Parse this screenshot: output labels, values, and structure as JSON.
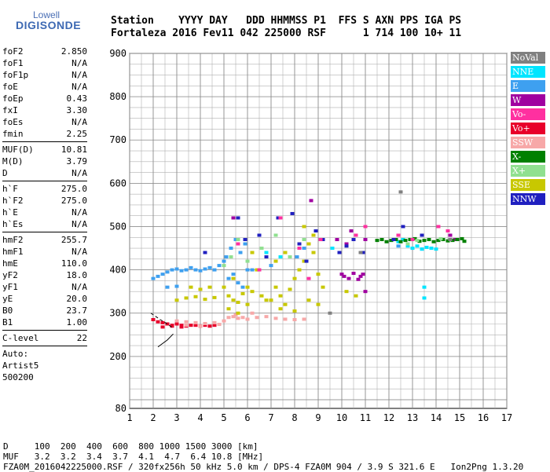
{
  "logo": {
    "line1": "Lowell",
    "line2": "DIGISONDE"
  },
  "header": {
    "row1": "Station    YYYY DAY   DDD HHMMSS P1  FFS S AXN PPS IGA PS",
    "row2": "Fortaleza 2016 Fev11 042 225000 RSF      1 714 100 10+ 11"
  },
  "params": [
    {
      "name": "foF2",
      "value": "2.850"
    },
    {
      "name": "foF1",
      "value": "N/A"
    },
    {
      "name": "foF1p",
      "value": "N/A"
    },
    {
      "name": "foE",
      "value": "N/A"
    },
    {
      "name": "foEp",
      "value": "0.43"
    },
    {
      "name": "fxI",
      "value": "3.30"
    },
    {
      "name": "foEs",
      "value": "N/A"
    },
    {
      "name": "fmin",
      "value": "2.25"
    },
    {
      "sep": true
    },
    {
      "name": "MUF(D)",
      "value": "10.81"
    },
    {
      "name": "M(D)",
      "value": "3.79"
    },
    {
      "name": "D",
      "value": "N/A"
    },
    {
      "sep": true
    },
    {
      "name": "h`F",
      "value": "275.0"
    },
    {
      "name": "h`F2",
      "value": "275.0"
    },
    {
      "name": "h`E",
      "value": "N/A"
    },
    {
      "name": "h`Es",
      "value": "N/A"
    },
    {
      "sep": true
    },
    {
      "name": "hmF2",
      "value": "255.7"
    },
    {
      "name": "hmF1",
      "value": "N/A"
    },
    {
      "name": "hmE",
      "value": "110.0"
    },
    {
      "name": "yF2",
      "value": "18.0"
    },
    {
      "name": "yF1",
      "value": "N/A"
    },
    {
      "name": "yE",
      "value": "20.0"
    },
    {
      "name": "B0",
      "value": "23.7"
    },
    {
      "name": "B1",
      "value": "1.00"
    },
    {
      "sep": true
    },
    {
      "name": "C-level",
      "value": "22"
    },
    {
      "sep": true
    },
    {
      "name": "Auto:",
      "value": ""
    },
    {
      "name": "Artist5",
      "value": ""
    },
    {
      "name": "500200",
      "value": ""
    }
  ],
  "legend": [
    {
      "label": "NoVal",
      "color": "#808080"
    },
    {
      "label": "NNE",
      "color": "#00e5ff"
    },
    {
      "label": "E",
      "color": "#3ea0f0"
    },
    {
      "label": "W",
      "color": "#a000a0"
    },
    {
      "label": "Vo-",
      "color": "#ff30a0"
    },
    {
      "label": "Vo+",
      "color": "#e8002a"
    },
    {
      "label": "SSW",
      "color": "#f7a8a8"
    },
    {
      "label": "X-",
      "color": "#008000"
    },
    {
      "label": "X+",
      "color": "#90e090"
    },
    {
      "label": "SSE",
      "color": "#c8c800"
    },
    {
      "label": "NNW",
      "color": "#2020c0"
    }
  ],
  "bottom": {
    "line1": "D     100  200  400  600  800 1000 1500 3000 [km]",
    "line2": "MUF   3.2  3.2  3.4  3.7  4.1  4.7  6.4 10.8 [MHz]",
    "line3": "FZA0M_2016042225000.RSF / 320fx256h 50 kHz 5.0 km / DPS-4 FZA0M 904 / 3.9 S 321.6 E   Ion2Png 1.3.20"
  },
  "chart_data": {
    "type": "scatter",
    "title": "",
    "xlabel": "",
    "ylabel": "",
    "xlim": [
      1,
      17
    ],
    "ylim": [
      80,
      900
    ],
    "x_ticks": [
      "1",
      "2",
      "3",
      "4",
      "5",
      "6",
      "7",
      "8",
      "9",
      "10",
      "11",
      "12",
      "13",
      "14",
      "15",
      "16",
      "17"
    ],
    "y_ticks": [
      "80",
      "200",
      "300",
      "400",
      "500",
      "600",
      "700",
      "800",
      "900"
    ],
    "grid": true,
    "trace": {
      "x": [
        1.9,
        2.3,
        2.6,
        2.85
      ],
      "y": [
        300,
        285,
        275,
        265
      ],
      "lower_x": [
        2.2,
        2.6,
        2.85
      ],
      "lower_y": [
        222,
        238,
        252
      ]
    },
    "series": [
      {
        "name": "Vo+",
        "color": "#e8002a",
        "x": [
          2.0,
          2.2,
          2.4,
          2.6,
          2.8,
          3.0,
          3.2,
          3.4,
          3.6,
          3.8,
          4.0,
          4.2,
          4.4,
          4.6,
          2.4,
          2.8,
          3.2
        ],
        "y": [
          285,
          280,
          278,
          275,
          272,
          275,
          272,
          270,
          272,
          272,
          270,
          272,
          270,
          272,
          268,
          270,
          268
        ]
      },
      {
        "name": "SSW",
        "color": "#f7a8a8",
        "x": [
          3.0,
          3.4,
          3.8,
          4.2,
          4.6,
          5.0,
          5.2,
          5.4,
          5.6,
          5.8,
          6.0,
          6.4,
          6.8,
          7.2,
          7.6,
          8.0,
          8.4,
          3.4,
          4.0,
          4.8,
          5.5,
          6.2
        ],
        "y": [
          282,
          280,
          278,
          276,
          278,
          282,
          290,
          292,
          288,
          290,
          286,
          290,
          292,
          288,
          286,
          285,
          286,
          272,
          270,
          274,
          296,
          300
        ]
      },
      {
        "name": "SSE",
        "color": "#c8c800",
        "x": [
          3.0,
          3.4,
          3.8,
          4.2,
          4.6,
          5.0,
          5.2,
          5.4,
          5.6,
          5.8,
          6.0,
          6.2,
          6.6,
          7.0,
          7.2,
          7.4,
          7.6,
          7.8,
          8.0,
          8.2,
          8.4,
          8.6,
          8.8,
          9.0,
          9.2,
          5.2,
          5.6,
          6.0,
          6.8,
          7.4,
          8.0,
          8.6,
          9.0,
          5.4,
          6.4,
          7.2,
          8.2,
          8.8,
          4.4,
          3.6,
          4.0,
          6.2,
          7.6,
          8.4,
          9.1,
          10.2,
          10.6
        ],
        "y": [
          330,
          335,
          338,
          332,
          336,
          360,
          340,
          330,
          325,
          345,
          360,
          350,
          340,
          330,
          360,
          340,
          320,
          355,
          380,
          400,
          420,
          460,
          440,
          390,
          360,
          310,
          300,
          320,
          330,
          310,
          305,
          330,
          320,
          380,
          400,
          420,
          460,
          480,
          360,
          360,
          355,
          440,
          440,
          500,
          470,
          350,
          340
        ]
      },
      {
        "name": "E",
        "color": "#3ea0f0",
        "x": [
          2.0,
          2.2,
          2.4,
          2.6,
          2.8,
          3.0,
          3.2,
          3.4,
          3.6,
          3.8,
          4.0,
          4.2,
          4.4,
          4.6,
          4.8,
          5.0,
          5.1,
          5.3,
          5.5,
          5.7,
          5.9,
          6.0,
          5.2,
          5.4,
          5.6,
          5.8,
          6.2,
          7.0,
          8.1,
          8.4,
          13.0,
          13.4,
          13.8,
          12.4,
          2.6,
          3.0
        ],
        "y": [
          380,
          385,
          390,
          395,
          400,
          402,
          398,
          400,
          405,
          400,
          398,
          402,
          405,
          400,
          410,
          420,
          430,
          450,
          470,
          440,
          460,
          400,
          380,
          390,
          370,
          360,
          400,
          410,
          430,
          450,
          450,
          448,
          450,
          455,
          360,
          362
        ]
      },
      {
        "name": "NNE",
        "color": "#00e5ff",
        "x": [
          12.4,
          12.6,
          12.8,
          13.0,
          13.2,
          13.4,
          13.6,
          13.8,
          14.0,
          13.5,
          13.5,
          6.8,
          7.4,
          9.6
        ],
        "y": [
          465,
          470,
          455,
          450,
          455,
          448,
          452,
          450,
          448,
          360,
          335,
          440,
          430,
          450
        ]
      },
      {
        "name": "W",
        "color": "#a000a0",
        "x": [
          10.0,
          10.1,
          10.3,
          10.5,
          10.7,
          10.8,
          10.9,
          11.0,
          11.0,
          10.2,
          10.6,
          5.4,
          8.7,
          9.8,
          10.4,
          14.6,
          14.8
        ],
        "y": [
          390,
          385,
          380,
          392,
          378,
          385,
          390,
          350,
          470,
          460,
          480,
          520,
          560,
          470,
          490,
          480,
          470
        ]
      },
      {
        "name": "X-",
        "color": "#008000",
        "x": [
          11.5,
          11.7,
          11.9,
          12.1,
          12.3,
          12.5,
          12.7,
          12.9,
          13.1,
          13.3,
          13.5,
          13.7,
          13.9,
          14.1,
          14.3,
          14.5,
          14.7,
          14.9,
          15.1,
          15.2
        ],
        "y": [
          468,
          470,
          465,
          468,
          470,
          465,
          468,
          470,
          472,
          466,
          468,
          470,
          465,
          468,
          470,
          467,
          468,
          470,
          472,
          466
        ]
      },
      {
        "name": "X+",
        "color": "#90e090",
        "x": [
          5.0,
          5.3,
          5.6,
          6.0,
          6.6,
          7.2,
          7.8,
          8.4,
          12.8,
          13.2,
          14.2
        ],
        "y": [
          410,
          430,
          470,
          420,
          450,
          480,
          430,
          470,
          460,
          468,
          472
        ]
      },
      {
        "name": "NNW",
        "color": "#2020c0",
        "x": [
          4.2,
          5.6,
          6.5,
          7.3,
          7.9,
          8.2,
          8.5,
          8.9,
          9.2,
          9.9,
          10.2,
          10.5,
          10.9,
          12.2,
          12.6,
          13.4,
          5.9,
          6.8
        ],
        "y": [
          440,
          520,
          480,
          520,
          530,
          460,
          420,
          490,
          470,
          440,
          455,
          470,
          440,
          470,
          500,
          480,
          470,
          430
        ]
      },
      {
        "name": "Vo-",
        "color": "#ff30a0",
        "x": [
          5.6,
          6.5,
          7.4,
          8.2,
          8.6,
          9.1,
          10.6,
          11.0,
          12.4,
          13.0,
          14.1,
          14.5
        ],
        "y": [
          460,
          400,
          520,
          450,
          380,
          470,
          480,
          500,
          480,
          470,
          500,
          490
        ]
      },
      {
        "name": "NoVal",
        "color": "#808080",
        "x": [
          9.5,
          10.8,
          12.5,
          14.6
        ],
        "y": [
          300,
          440,
          580,
          470
        ]
      }
    ]
  }
}
